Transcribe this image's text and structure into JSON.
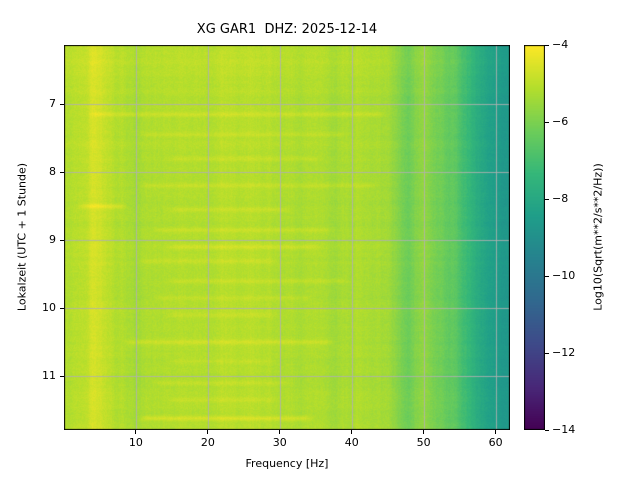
{
  "title": "XG GAR1  DHZ: 2025-12-14",
  "axes": {
    "xlabel": "Frequency [Hz]",
    "ylabel": "Lokalzeit (UTC + 1 Stunde)",
    "x_ticks": [
      10,
      20,
      30,
      40,
      50,
      60
    ],
    "y_ticks": [
      7,
      8,
      9,
      10,
      11
    ],
    "x_range": [
      0,
      62
    ],
    "y_range": [
      6.13,
      11.79
    ],
    "grid_color": "#b0b0b0"
  },
  "colorbar": {
    "label": "Log10(Sqrt(m**2/s**2/Hz))",
    "tick_labels": [
      "−4",
      "−6",
      "−8",
      "−10",
      "−12",
      "−14"
    ],
    "tick_values": [
      -4,
      -6,
      -8,
      -10,
      -12,
      -14
    ],
    "vmin": -14,
    "vmax": -4,
    "colormap": "viridis"
  },
  "chart_data": {
    "type": "heatmap",
    "title": "XG GAR1  DHZ: 2025-12-14",
    "xlabel": "Frequency [Hz]",
    "ylabel": "Lokalzeit (UTC + 1 Stunde)",
    "value_units": "Log10(Sqrt(m**2/s**2/Hz))",
    "x_range_hz": [
      0,
      62
    ],
    "time_range_h": [
      6.13,
      11.79
    ],
    "vmin": -14,
    "vmax": -4,
    "background_level": -5.2,
    "freq_profile": {
      "freqs": [
        0,
        1,
        2,
        3,
        4,
        5,
        6,
        8,
        10,
        14,
        18,
        22,
        26,
        30,
        34,
        38,
        42,
        45,
        46,
        47,
        48,
        49,
        50,
        52,
        54,
        56,
        58,
        60,
        62
      ],
      "values": [
        -5.05,
        -5.0,
        -5.05,
        -4.9,
        -4.62,
        -4.7,
        -5.0,
        -5.2,
        -5.3,
        -5.2,
        -5.15,
        -5.1,
        -5.1,
        -5.15,
        -5.25,
        -5.3,
        -5.25,
        -5.4,
        -5.7,
        -6.0,
        -6.15,
        -5.9,
        -5.6,
        -6.1,
        -6.5,
        -7.2,
        -8.0,
        -8.5,
        -8.8
      ]
    },
    "time_profile": {
      "times": [
        6.13,
        6.6,
        7.2,
        11.79
      ],
      "deltas": [
        0.15,
        0.08,
        0,
        0
      ]
    },
    "events": [
      {
        "time": 7.15,
        "f_lo": 3,
        "f_hi": 45,
        "boost": 0.35
      },
      {
        "time": 7.45,
        "f_lo": 10,
        "f_hi": 40,
        "boost": 0.3
      },
      {
        "time": 7.8,
        "f_lo": 14,
        "f_hi": 36,
        "boost": 0.25
      },
      {
        "time": 8.2,
        "f_lo": 10,
        "f_hi": 44,
        "boost": 0.3
      },
      {
        "time": 8.5,
        "f_lo": 1.5,
        "f_hi": 9,
        "boost": 0.55
      },
      {
        "time": 8.55,
        "f_lo": 14,
        "f_hi": 32,
        "boost": 0.3
      },
      {
        "time": 8.85,
        "f_lo": 12,
        "f_hi": 38,
        "boost": 0.3
      },
      {
        "time": 9.1,
        "f_lo": 14,
        "f_hi": 36,
        "boost": 0.35
      },
      {
        "time": 9.3,
        "f_lo": 10,
        "f_hi": 30,
        "boost": 0.3
      },
      {
        "time": 9.6,
        "f_lo": 14,
        "f_hi": 40,
        "boost": 0.3
      },
      {
        "time": 9.85,
        "f_lo": 12,
        "f_hi": 35,
        "boost": 0.3
      },
      {
        "time": 10.1,
        "f_lo": 14,
        "f_hi": 30,
        "boost": 0.25
      },
      {
        "time": 10.5,
        "f_lo": 8,
        "f_hi": 38,
        "boost": 0.5
      },
      {
        "time": 10.78,
        "f_lo": 14,
        "f_hi": 30,
        "boost": 0.25
      },
      {
        "time": 11.1,
        "f_lo": 12,
        "f_hi": 32,
        "boost": 0.3
      },
      {
        "time": 11.35,
        "f_lo": 14,
        "f_hi": 30,
        "boost": 0.25
      },
      {
        "time": 11.62,
        "f_lo": 10,
        "f_hi": 35,
        "boost": 0.55
      }
    ],
    "event_sigma_h": 0.025,
    "noise_texture": 0.28
  }
}
